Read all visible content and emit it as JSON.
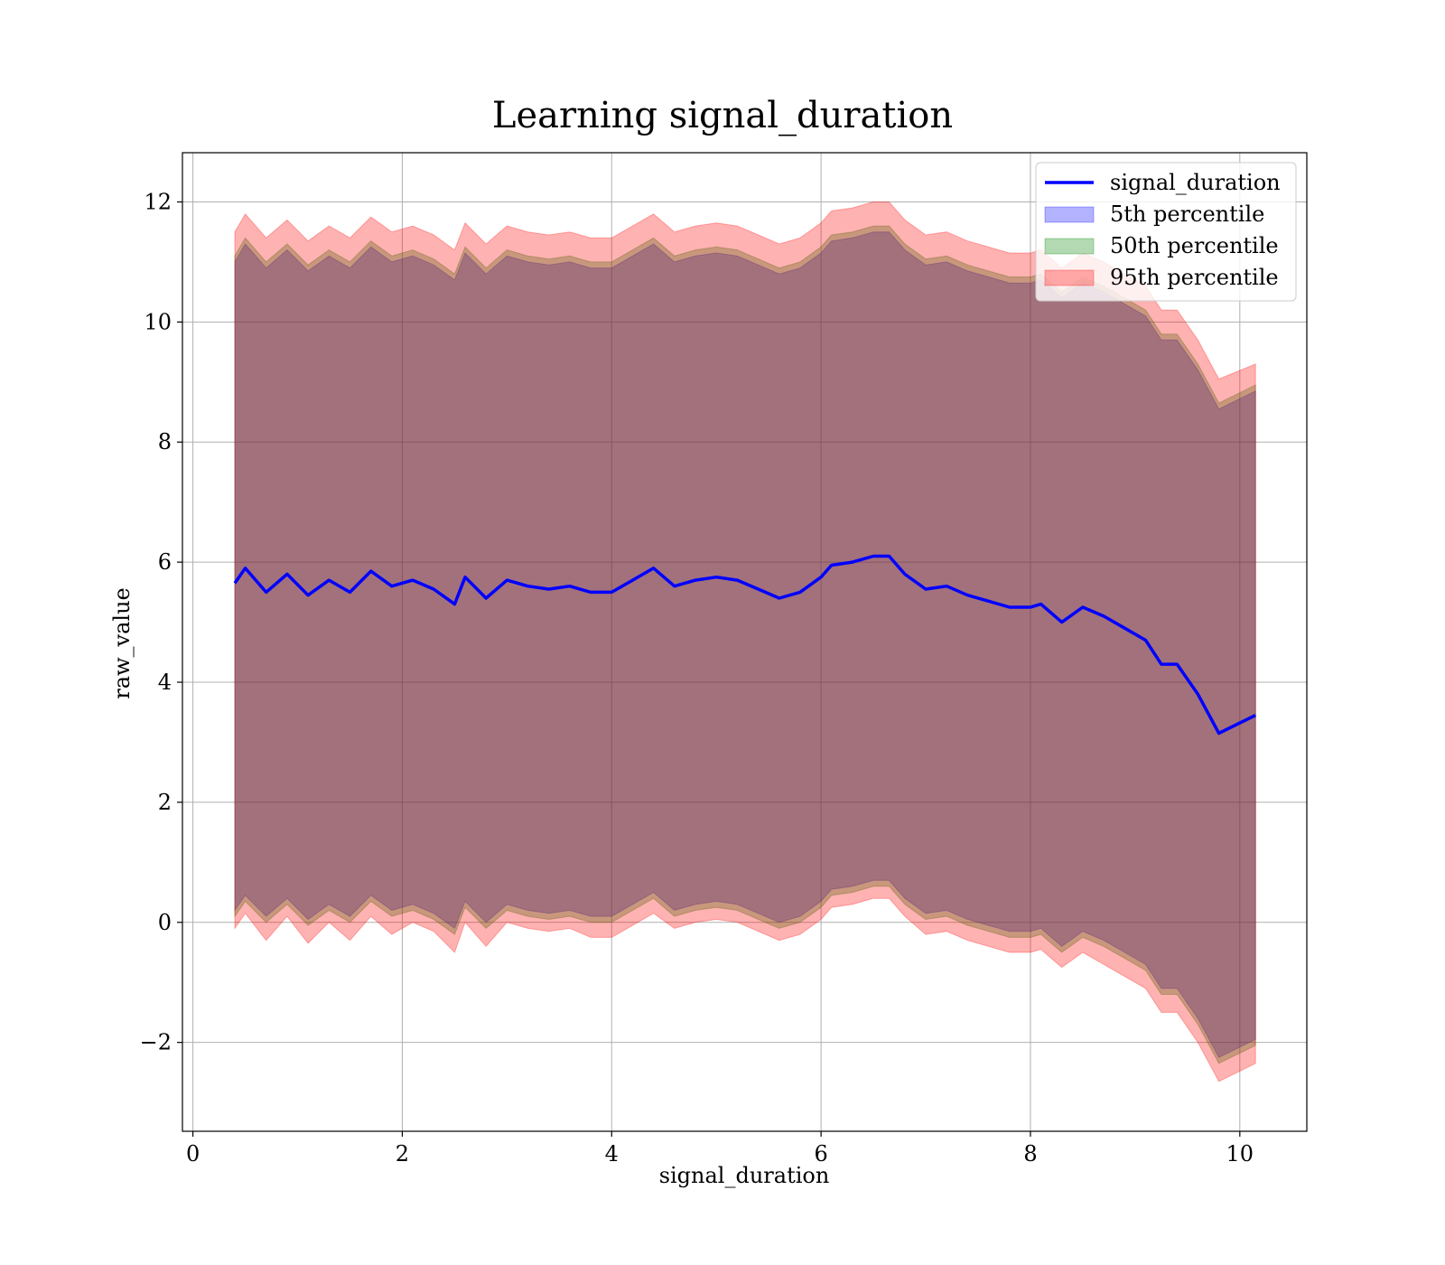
{
  "chart_data": {
    "type": "area",
    "title": "Learning signal_duration",
    "xlabel": "signal_duration",
    "ylabel": "raw_value",
    "xlim": [
      -0.1,
      10.64
    ],
    "ylim": [
      -3.48,
      12.82
    ],
    "xticks": [
      0,
      2,
      4,
      6,
      8,
      10
    ],
    "xtick_labels": [
      "0",
      "2",
      "4",
      "6",
      "8",
      "10"
    ],
    "yticks": [
      -2,
      0,
      2,
      4,
      6,
      8,
      10,
      12
    ],
    "ytick_labels": [
      "−2",
      "0",
      "2",
      "4",
      "6",
      "8",
      "10",
      "12"
    ],
    "grid": true,
    "legend_position": "top-right",
    "x": [
      0.4,
      0.5,
      0.7,
      0.9,
      1.1,
      1.3,
      1.5,
      1.7,
      1.9,
      2.1,
      2.3,
      2.5,
      2.6,
      2.8,
      3.0,
      3.2,
      3.4,
      3.6,
      3.8,
      4.0,
      4.2,
      4.4,
      4.6,
      4.8,
      5.0,
      5.2,
      5.4,
      5.6,
      5.8,
      6.0,
      6.1,
      6.3,
      6.5,
      6.65,
      6.8,
      7.0,
      7.2,
      7.4,
      7.6,
      7.8,
      8.0,
      8.1,
      8.3,
      8.5,
      8.7,
      8.9,
      9.1,
      9.25,
      9.4,
      9.6,
      9.8,
      10.15
    ],
    "series": [
      {
        "name": "signal_duration",
        "kind": "line",
        "color": "#0000ff",
        "values": [
          5.65,
          5.9,
          5.5,
          5.8,
          5.45,
          5.7,
          5.5,
          5.85,
          5.6,
          5.7,
          5.55,
          5.3,
          5.75,
          5.4,
          5.7,
          5.6,
          5.55,
          5.6,
          5.5,
          5.5,
          5.7,
          5.9,
          5.6,
          5.7,
          5.75,
          5.7,
          5.55,
          5.4,
          5.5,
          5.75,
          5.95,
          6.0,
          6.1,
          6.1,
          5.8,
          5.55,
          5.6,
          5.45,
          5.35,
          5.25,
          5.25,
          5.3,
          5.0,
          5.25,
          5.1,
          4.9,
          4.7,
          4.3,
          4.3,
          3.8,
          3.15,
          3.45
        ]
      },
      {
        "name": "5th percentile",
        "kind": "band",
        "color": "#0000ff",
        "lower": [
          0.2,
          0.45,
          0.1,
          0.4,
          0.05,
          0.3,
          0.1,
          0.45,
          0.2,
          0.3,
          0.15,
          -0.1,
          0.35,
          0.0,
          0.3,
          0.2,
          0.15,
          0.2,
          0.1,
          0.1,
          0.3,
          0.5,
          0.2,
          0.3,
          0.35,
          0.3,
          0.15,
          0.0,
          0.1,
          0.35,
          0.55,
          0.6,
          0.7,
          0.7,
          0.4,
          0.15,
          0.2,
          0.05,
          -0.05,
          -0.15,
          -0.15,
          -0.1,
          -0.4,
          -0.15,
          -0.3,
          -0.5,
          -0.7,
          -1.1,
          -1.1,
          -1.6,
          -2.25,
          -1.95
        ],
        "upper": [
          11.0,
          11.3,
          10.9,
          11.2,
          10.85,
          11.1,
          10.9,
          11.25,
          11.0,
          11.1,
          10.95,
          10.7,
          11.15,
          10.8,
          11.1,
          11.0,
          10.95,
          11.0,
          10.9,
          10.9,
          11.1,
          11.3,
          11.0,
          11.1,
          11.15,
          11.1,
          10.95,
          10.8,
          10.9,
          11.15,
          11.35,
          11.4,
          11.5,
          11.5,
          11.2,
          10.95,
          11.0,
          10.85,
          10.75,
          10.65,
          10.65,
          10.7,
          10.4,
          10.65,
          10.5,
          10.3,
          10.1,
          9.7,
          9.7,
          9.2,
          8.55,
          8.85
        ]
      },
      {
        "name": "50th percentile",
        "kind": "band",
        "color": "#008000",
        "lower": [
          0.1,
          0.35,
          0.0,
          0.3,
          -0.05,
          0.2,
          0.0,
          0.35,
          0.1,
          0.2,
          0.05,
          -0.2,
          0.25,
          -0.1,
          0.2,
          0.1,
          0.05,
          0.1,
          0.0,
          0.0,
          0.2,
          0.4,
          0.1,
          0.2,
          0.25,
          0.2,
          0.05,
          -0.1,
          0.0,
          0.25,
          0.45,
          0.5,
          0.6,
          0.6,
          0.3,
          0.05,
          0.1,
          -0.05,
          -0.15,
          -0.25,
          -0.25,
          -0.2,
          -0.5,
          -0.25,
          -0.4,
          -0.6,
          -0.8,
          -1.2,
          -1.2,
          -1.7,
          -2.35,
          -2.05
        ],
        "upper": [
          11.1,
          11.4,
          11.0,
          11.3,
          10.95,
          11.2,
          11.0,
          11.35,
          11.1,
          11.2,
          11.05,
          10.8,
          11.25,
          10.9,
          11.2,
          11.1,
          11.05,
          11.1,
          11.0,
          11.0,
          11.2,
          11.4,
          11.1,
          11.2,
          11.25,
          11.2,
          11.05,
          10.9,
          11.0,
          11.25,
          11.45,
          11.5,
          11.6,
          11.6,
          11.3,
          11.05,
          11.1,
          10.95,
          10.85,
          10.75,
          10.75,
          10.8,
          10.5,
          10.75,
          10.6,
          10.4,
          10.2,
          9.8,
          9.8,
          9.3,
          8.65,
          8.95
        ]
      },
      {
        "name": "95th percentile",
        "kind": "band",
        "color": "#ff0000",
        "lower": [
          -0.1,
          0.15,
          -0.3,
          0.1,
          -0.35,
          0.0,
          -0.3,
          0.1,
          -0.2,
          0.0,
          -0.15,
          -0.5,
          0.0,
          -0.4,
          0.0,
          -0.1,
          -0.15,
          -0.1,
          -0.25,
          -0.25,
          -0.05,
          0.15,
          -0.1,
          0.0,
          0.05,
          0.0,
          -0.15,
          -0.3,
          -0.2,
          0.05,
          0.25,
          0.3,
          0.4,
          0.4,
          0.1,
          -0.2,
          -0.15,
          -0.3,
          -0.4,
          -0.5,
          -0.5,
          -0.45,
          -0.75,
          -0.5,
          -0.7,
          -0.9,
          -1.1,
          -1.5,
          -1.5,
          -2.0,
          -2.65,
          -2.35
        ],
        "upper": [
          11.5,
          11.8,
          11.4,
          11.7,
          11.35,
          11.6,
          11.4,
          11.75,
          11.5,
          11.6,
          11.45,
          11.2,
          11.65,
          11.3,
          11.6,
          11.5,
          11.45,
          11.5,
          11.4,
          11.4,
          11.6,
          11.8,
          11.5,
          11.6,
          11.65,
          11.6,
          11.45,
          11.3,
          11.4,
          11.65,
          11.85,
          11.9,
          12.0,
          12.0,
          11.7,
          11.45,
          11.5,
          11.35,
          11.25,
          11.15,
          11.15,
          11.2,
          10.9,
          11.15,
          11.0,
          10.8,
          10.6,
          10.2,
          10.2,
          9.7,
          9.05,
          9.3
        ]
      }
    ]
  }
}
